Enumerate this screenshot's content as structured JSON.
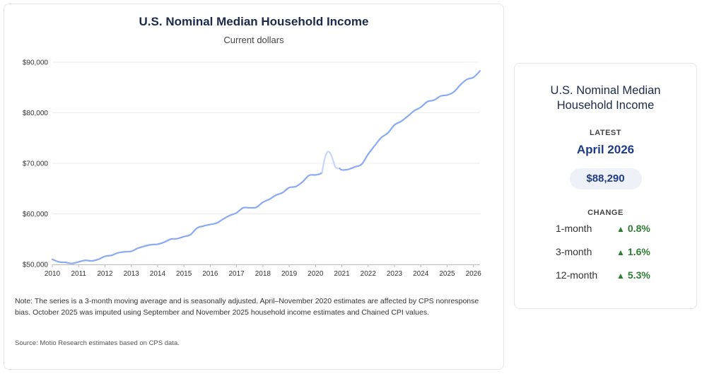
{
  "chart": {
    "title": "U.S. Nominal Median Household Income",
    "subtitle": "Current dollars",
    "note": "Note: The series is a 3-month moving average and is seasonally adjusted. April–November 2020 estimates are affected by CPS nonresponse bias. October 2025 was imputed using September and November 2025 household income estimates and Chained CPI values.",
    "source": "Source: Motio Research estimates based on CPS data."
  },
  "chart_data": {
    "type": "line",
    "title": "U.S. Nominal Median Household Income",
    "subtitle": "Current dollars",
    "xlabel": "",
    "ylabel": "",
    "xlim": [
      2010,
      2026.25
    ],
    "ylim": [
      50000,
      90000
    ],
    "y_ticks": [
      50000,
      60000,
      70000,
      80000,
      90000
    ],
    "y_tick_labels": [
      "$50,000",
      "$60,000",
      "$70,000",
      "$80,000",
      "$90,000"
    ],
    "x_ticks": [
      "2010",
      "2011",
      "2012",
      "2013",
      "2014",
      "2015",
      "2016",
      "2017",
      "2018",
      "2019",
      "2020",
      "2021",
      "2022",
      "2023",
      "2024",
      "2025",
      "2026"
    ],
    "grid": true,
    "series": [
      {
        "color": "#8aaaf5",
        "x": [
          2010.0,
          2010.25,
          2010.5,
          2010.75,
          2011.0,
          2011.25,
          2011.5,
          2011.75,
          2012.0,
          2012.25,
          2012.5,
          2012.75,
          2013.0,
          2013.25,
          2013.5,
          2013.75,
          2014.0,
          2014.25,
          2014.5,
          2014.75,
          2015.0,
          2015.25,
          2015.5,
          2015.75,
          2016.0,
          2016.25,
          2016.5,
          2016.75,
          2017.0,
          2017.25,
          2017.5,
          2017.75,
          2018.0,
          2018.25,
          2018.5,
          2018.75,
          2019.0,
          2019.25,
          2019.5,
          2019.75,
          2020.0,
          2020.17,
          2020.25
        ],
        "values": [
          51000,
          50500,
          50400,
          50200,
          50500,
          50800,
          50700,
          51000,
          51600,
          51800,
          52300,
          52500,
          52600,
          53200,
          53600,
          53900,
          54000,
          54400,
          55000,
          55100,
          55500,
          55900,
          57200,
          57600,
          57900,
          58200,
          59000,
          59700,
          60200,
          61200,
          61200,
          61300,
          62300,
          62900,
          63700,
          64200,
          65200,
          65400,
          66300,
          67600,
          67700,
          67900,
          68200
        ]
      },
      {
        "color": "#c6d6fa",
        "x": [
          2020.25,
          2020.33,
          2020.42,
          2020.5,
          2020.58,
          2020.67,
          2020.75,
          2020.83,
          2020.92
        ],
        "values": [
          68200,
          70500,
          72000,
          72300,
          71800,
          70500,
          69300,
          69000,
          69000
        ]
      },
      {
        "color": "#8aaaf5",
        "x": [
          2020.92,
          2021.0,
          2021.25,
          2021.5,
          2021.75,
          2022.0,
          2022.25,
          2022.5,
          2022.75,
          2023.0,
          2023.25,
          2023.5,
          2023.75,
          2024.0,
          2024.25,
          2024.5,
          2024.75,
          2025.0,
          2025.25,
          2025.5,
          2025.75,
          2026.0,
          2026.25
        ],
        "values": [
          69000,
          68700,
          68800,
          69300,
          69800,
          71800,
          73500,
          75100,
          76000,
          77600,
          78300,
          79300,
          80400,
          81100,
          82200,
          82500,
          83300,
          83500,
          84100,
          85500,
          86600,
          87000,
          88290
        ]
      }
    ]
  },
  "summary": {
    "title": "U.S. Nominal Median Household Income",
    "latest_label": "LATEST",
    "latest_date": "April 2026",
    "latest_value": "$88,290",
    "change_label": "CHANGE",
    "changes": [
      {
        "period": "1-month",
        "arrow": "▲",
        "value": "0.8%"
      },
      {
        "period": "3-month",
        "arrow": "▲",
        "value": "1.6%"
      },
      {
        "period": "12-month",
        "arrow": "▲",
        "value": "5.3%"
      }
    ],
    "positive_color": "#2e7d32",
    "accent_color": "#1f3c88"
  }
}
